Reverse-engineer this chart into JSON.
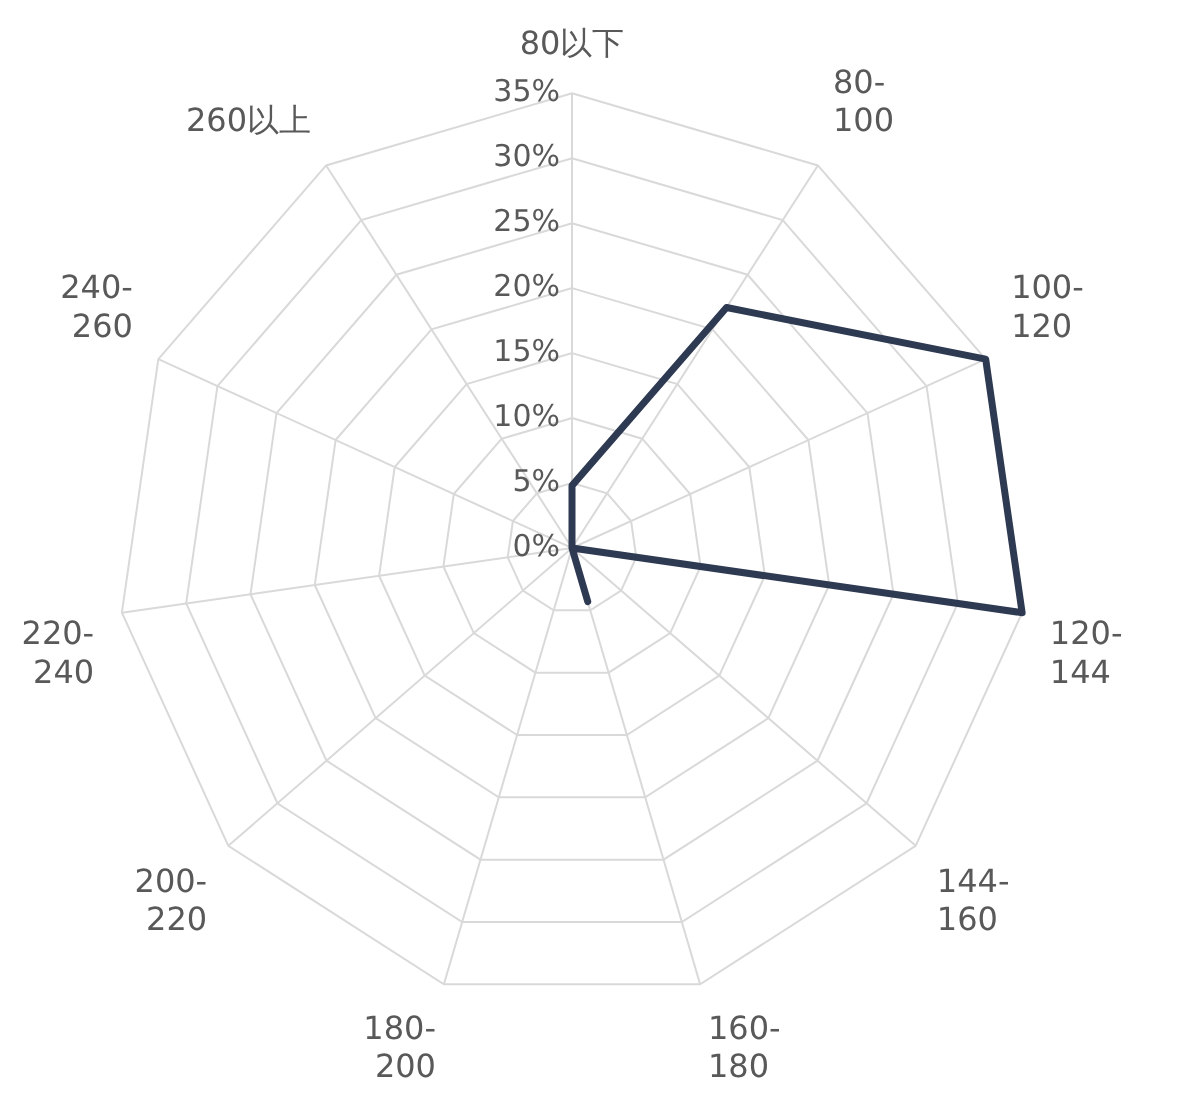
{
  "chart_data": {
    "type": "radar",
    "categories": [
      "80以下",
      "80-100",
      "100-120",
      "120-144",
      "144-160",
      "160-180",
      "180-200",
      "200-220",
      "220-240",
      "240-260",
      "260以上"
    ],
    "series": [
      {
        "color": "#2e3a52",
        "values": [
          4.8,
          22,
          35,
          35,
          0,
          4.3,
          0,
          0,
          0,
          0,
          0
        ]
      }
    ],
    "ylim": [
      0,
      35
    ],
    "yticks": [
      {
        "value": 0,
        "label": "0%"
      },
      {
        "value": 5,
        "label": "5%"
      },
      {
        "value": 10,
        "label": "10%"
      },
      {
        "value": 15,
        "label": "15%"
      },
      {
        "value": 20,
        "label": "20%"
      },
      {
        "value": 25,
        "label": "25%"
      },
      {
        "value": 30,
        "label": "30%"
      },
      {
        "value": 35,
        "label": "35%"
      }
    ],
    "grid": true,
    "legend": false,
    "marker": "none"
  }
}
